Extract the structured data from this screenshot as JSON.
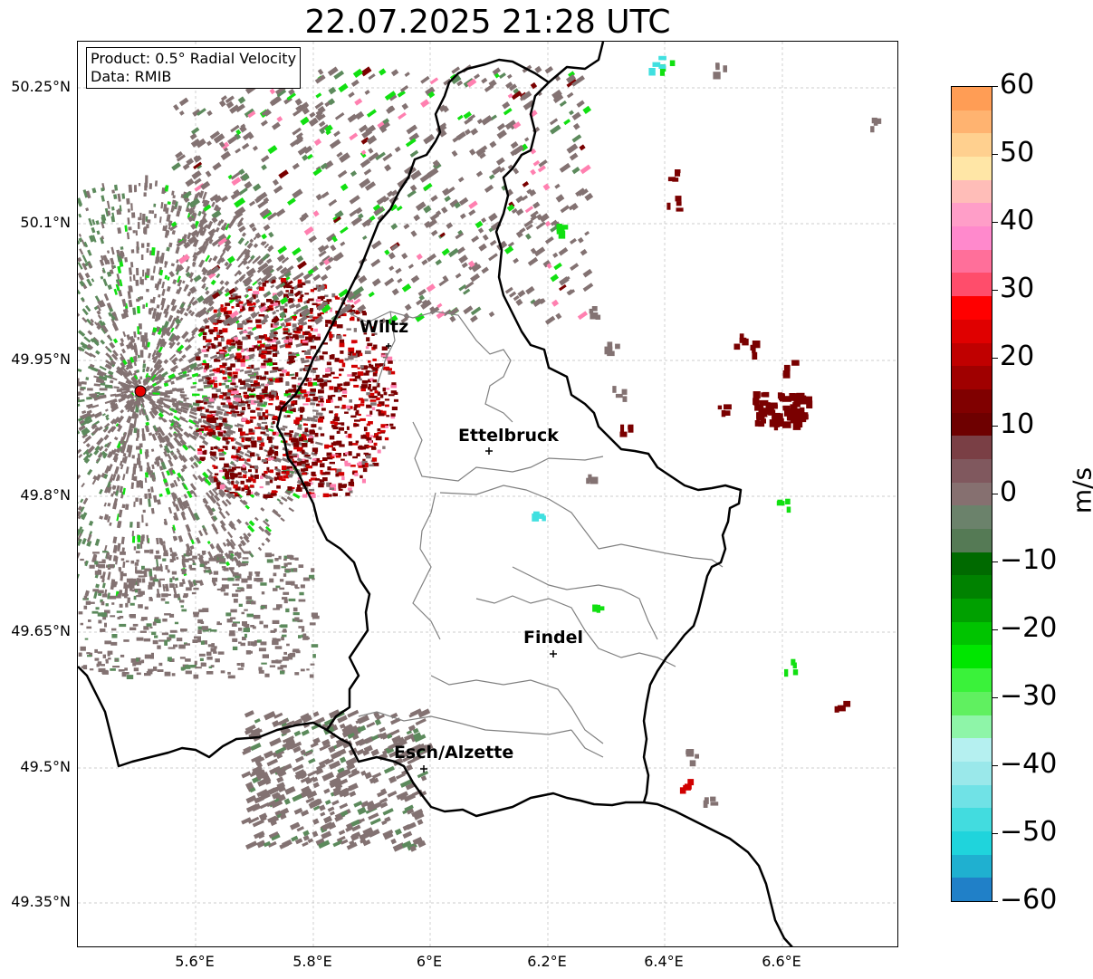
{
  "title": "22.07.2025 21:28 UTC",
  "info": {
    "product": "Product: 0.5° Radial Velocity",
    "data_source": "Data: RMIB"
  },
  "lat_labels": [
    "50.25°N",
    "50.1°N",
    "49.95°N",
    "49.8°N",
    "49.65°N",
    "49.5°N",
    "49.35°N"
  ],
  "lon_labels": [
    "5.6°E",
    "5.8°E",
    "6°E",
    "6.2°E",
    "6.4°E",
    "6.6°E"
  ],
  "cities": [
    {
      "name": "Wiltz"
    },
    {
      "name": "Ettelbruck"
    },
    {
      "name": "Findel"
    },
    {
      "name": "Esch/Alzette"
    }
  ],
  "colorbar": {
    "unit": "m/s",
    "ticks": [
      "60",
      "50",
      "40",
      "30",
      "20",
      "10",
      "0",
      "−10",
      "−20",
      "−30",
      "−40",
      "−50",
      "−60"
    ],
    "range": [
      -60,
      60
    ],
    "colors": [
      "#ff9d55",
      "#ffb370",
      "#ffd08f",
      "#ffe6a6",
      "#ffbdb8",
      "#ff9ec8",
      "#ff89cc",
      "#ff6f9a",
      "#ff4d6b",
      "#ff0000",
      "#e00000",
      "#c00000",
      "#a00000",
      "#800000",
      "#6e0000",
      "#7a3f45",
      "#80585e",
      "#867070",
      "#6b826b",
      "#557a55",
      "#006a00",
      "#008200",
      "#00a000",
      "#00c400",
      "#00e600",
      "#3af23a",
      "#60f060",
      "#8ef5a8",
      "#b5f0f0",
      "#9ae8ea",
      "#70e2e6",
      "#42dcdf",
      "#1fd4dc",
      "#1fb0d0",
      "#2080c8"
    ]
  },
  "radar_site": {
    "color": "#e60000"
  },
  "colors": {
    "border": "#000000",
    "canton": "#808080",
    "grid": "#bdbdbd",
    "clutter_gray": "#837272",
    "clutter_green": "#5c8a5c",
    "bright_green": "#11e011",
    "dark_red": "#7a0000",
    "red": "#d10000",
    "cyan": "#40e0e0",
    "pink": "#ff80b0"
  }
}
